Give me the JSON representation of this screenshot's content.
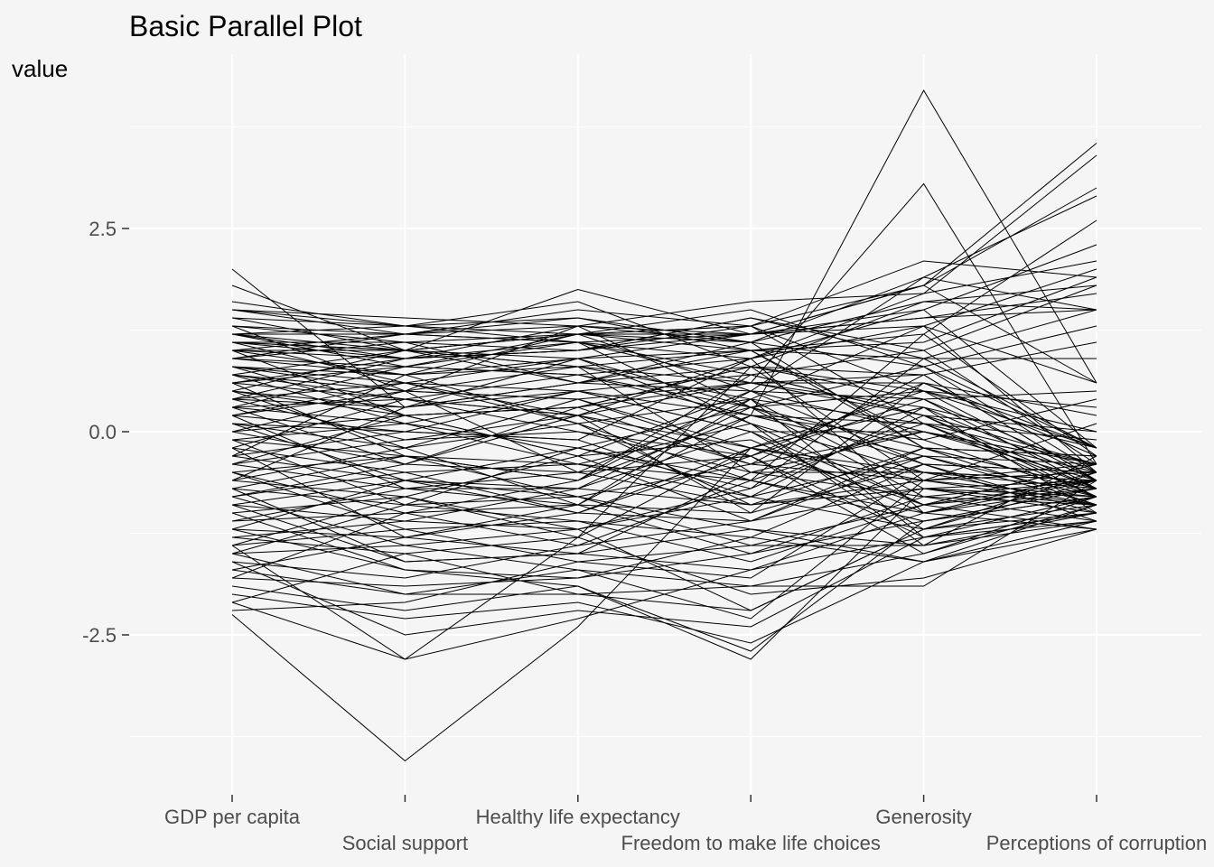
{
  "chart_data": {
    "type": "line",
    "title": "Basic Parallel Plot",
    "xlabel": "",
    "ylabel": "value",
    "categories": [
      "GDP per capita",
      "Social support",
      "Healthy life expectancy",
      "Freedom to make life choices",
      "Generosity",
      "Perceptions of corruption"
    ],
    "y_ticks": [
      -2.5,
      0.0,
      2.5
    ],
    "y_tick_labels": [
      "-2.5",
      "0.0",
      "2.5"
    ],
    "ylim": [
      -4.6,
      4.7
    ],
    "grid": true,
    "line_color": "#000000",
    "background_color": "#f5f5f5",
    "grid_color": "#ffffff",
    "series": [
      {
        "values": [
          -2.25,
          -4.05,
          -2.4,
          -0.2,
          0.3,
          -0.6
        ]
      },
      {
        "values": [
          2.0,
          0.3,
          0.5,
          0.2,
          4.2,
          0.6
        ]
      },
      {
        "values": [
          0.5,
          0.2,
          0.3,
          0.6,
          3.05,
          -0.4
        ]
      },
      {
        "values": [
          1.8,
          1.0,
          1.75,
          1.2,
          1.8,
          3.55
        ]
      },
      {
        "values": [
          1.5,
          1.4,
          1.3,
          1.6,
          1.7,
          3.4
        ]
      },
      {
        "values": [
          1.2,
          1.2,
          1.5,
          1.3,
          1.8,
          3.0
        ]
      },
      {
        "values": [
          1.6,
          1.3,
          1.4,
          1.1,
          1.9,
          2.9
        ]
      },
      {
        "values": [
          1.3,
          1.1,
          1.2,
          1.0,
          1.2,
          2.6
        ]
      },
      {
        "values": [
          1.1,
          0.9,
          1.3,
          1.2,
          1.5,
          2.3
        ]
      },
      {
        "values": [
          1.0,
          1.2,
          1.1,
          0.9,
          1.3,
          2.0
        ]
      },
      {
        "values": [
          1.4,
          1.0,
          1.2,
          1.3,
          2.1,
          1.9
        ]
      },
      {
        "values": [
          0.9,
          1.1,
          1.0,
          1.4,
          1.0,
          1.8
        ]
      },
      {
        "values": [
          1.2,
          1.3,
          1.6,
          0.8,
          1.6,
          1.5
        ]
      },
      {
        "values": [
          0.8,
          0.7,
          0.9,
          1.0,
          0.9,
          1.5
        ]
      },
      {
        "values": [
          1.5,
          1.2,
          1.1,
          1.2,
          1.4,
          1.7
        ]
      },
      {
        "values": [
          1.1,
          1.0,
          1.2,
          1.1,
          0.8,
          1.3
        ]
      },
      {
        "values": [
          1.3,
          1.2,
          1.4,
          1.0,
          1.1,
          1.9
        ]
      },
      {
        "values": [
          0.6,
          0.8,
          0.7,
          0.9,
          1.7,
          2.1
        ]
      },
      {
        "values": [
          1.0,
          0.9,
          1.1,
          0.6,
          0.7,
          1.1
        ]
      },
      {
        "values": [
          0.7,
          0.5,
          0.8,
          0.4,
          1.3,
          0.6
        ]
      },
      {
        "values": [
          1.2,
          0.9,
          1.0,
          1.3,
          0.5,
          0.3
        ]
      },
      {
        "values": [
          0.4,
          0.6,
          0.5,
          0.7,
          0.2,
          0.0
        ]
      },
      {
        "values": [
          0.9,
          0.7,
          1.2,
          0.5,
          0.4,
          0.5
        ]
      },
      {
        "values": [
          0.3,
          0.4,
          0.2,
          0.6,
          0.6,
          0.2
        ]
      },
      {
        "values": [
          1.1,
          1.0,
          0.9,
          0.3,
          -0.4,
          -0.5
        ]
      },
      {
        "values": [
          0.5,
          0.3,
          0.6,
          1.1,
          -0.2,
          -0.3
        ]
      },
      {
        "values": [
          0.2,
          0.5,
          0.4,
          -0.2,
          0.5,
          -0.6
        ]
      },
      {
        "values": [
          0.8,
          0.2,
          0.3,
          0.8,
          -0.6,
          -0.4
        ]
      },
      {
        "values": [
          0.1,
          -0.2,
          0.1,
          0.4,
          0.1,
          -0.7
        ]
      },
      {
        "values": [
          0.6,
          0.4,
          0.7,
          0.2,
          -0.3,
          -0.8
        ]
      },
      {
        "values": [
          -0.1,
          0.1,
          -0.2,
          0.3,
          0.8,
          -0.5
        ]
      },
      {
        "values": [
          0.4,
          -0.1,
          0.0,
          -0.5,
          -0.8,
          -0.9
        ]
      },
      {
        "values": [
          0.0,
          0.2,
          -0.3,
          0.5,
          0.0,
          -0.4
        ]
      },
      {
        "values": [
          0.3,
          -0.4,
          0.2,
          0.9,
          -1.0,
          -0.6
        ]
      },
      {
        "values": [
          -0.3,
          0.0,
          -0.1,
          -0.8,
          0.3,
          -0.2
        ]
      },
      {
        "values": [
          0.7,
          0.1,
          0.5,
          0.0,
          -1.2,
          -1.0
        ]
      },
      {
        "values": [
          -0.2,
          -0.5,
          -0.4,
          0.1,
          -0.5,
          -0.7
        ]
      },
      {
        "values": [
          0.2,
          0.6,
          0.1,
          -0.6,
          1.2,
          -0.3
        ]
      },
      {
        "values": [
          -0.5,
          -0.3,
          -0.6,
          0.2,
          -0.1,
          -0.8
        ]
      },
      {
        "values": [
          -0.4,
          -0.7,
          -0.5,
          -0.3,
          0.4,
          -0.5
        ]
      },
      {
        "values": [
          0.1,
          -0.6,
          -0.7,
          -0.9,
          -0.7,
          -0.9
        ]
      },
      {
        "values": [
          -0.6,
          -0.2,
          -0.9,
          0.4,
          -1.3,
          -1.1
        ]
      },
      {
        "values": [
          -0.7,
          -0.9,
          -0.8,
          -0.4,
          0.7,
          -0.6
        ]
      },
      {
        "values": [
          -0.8,
          -0.5,
          -1.0,
          -1.1,
          -0.3,
          -0.4
        ]
      },
      {
        "values": [
          -0.9,
          -1.1,
          -0.7,
          0.0,
          -0.9,
          -1.2
        ]
      },
      {
        "values": [
          -1.0,
          -0.8,
          -1.2,
          -0.7,
          0.2,
          -0.7
        ]
      },
      {
        "values": [
          -0.5,
          -1.2,
          -1.1,
          -1.3,
          -0.4,
          -0.5
        ]
      },
      {
        "values": [
          -1.1,
          -1.0,
          -1.4,
          -0.6,
          -1.1,
          -0.8
        ]
      },
      {
        "values": [
          -1.2,
          -1.3,
          -0.9,
          -1.0,
          0.6,
          -0.3
        ]
      },
      {
        "values": [
          -1.3,
          -1.5,
          -1.3,
          -0.2,
          -0.6,
          -0.9
        ]
      },
      {
        "values": [
          -1.4,
          -1.2,
          -1.6,
          -1.4,
          -1.4,
          -1.0
        ]
      },
      {
        "values": [
          -0.9,
          -1.6,
          -1.5,
          -0.5,
          0.0,
          -0.6
        ]
      },
      {
        "values": [
          -1.5,
          -1.4,
          -1.7,
          -1.9,
          -1.5,
          -0.8
        ]
      },
      {
        "values": [
          -1.6,
          -1.8,
          -1.4,
          -1.1,
          -0.2,
          -0.7
        ]
      },
      {
        "values": [
          -1.7,
          -2.0,
          -2.0,
          -2.2,
          -1.2,
          -0.9
        ]
      },
      {
        "values": [
          -1.8,
          -1.9,
          -1.8,
          -1.5,
          -0.8,
          -1.1
        ]
      },
      {
        "values": [
          -2.0,
          -2.3,
          -2.1,
          -2.6,
          -1.6,
          -1.2
        ]
      },
      {
        "values": [
          -2.1,
          -2.8,
          -2.3,
          -1.7,
          -1.0,
          -0.5
        ]
      },
      {
        "values": [
          -1.9,
          -2.2,
          -1.9,
          -2.8,
          -0.7,
          -1.0
        ]
      },
      {
        "values": [
          -1.4,
          -2.8,
          -1.3,
          -2.0,
          -1.8,
          -1.2
        ]
      },
      {
        "values": [
          -2.2,
          -2.1,
          -1.6,
          -1.8,
          -0.5,
          -0.6
        ]
      },
      {
        "values": [
          -1.6,
          -2.5,
          -2.2,
          -2.4,
          -1.3,
          -1.0
        ]
      },
      {
        "values": [
          -1.0,
          -1.7,
          -1.9,
          -2.7,
          -1.1,
          -0.8
        ]
      },
      {
        "values": [
          -1.5,
          -0.9,
          -1.1,
          -1.6,
          -0.9,
          -0.4
        ]
      },
      {
        "values": [
          -1.2,
          -0.6,
          -0.8,
          -1.2,
          -1.4,
          -1.1
        ]
      },
      {
        "values": [
          -0.8,
          -0.4,
          -0.5,
          -0.9,
          -0.2,
          -0.3
        ]
      },
      {
        "values": [
          -0.6,
          -0.8,
          -0.3,
          -0.1,
          -1.0,
          -0.7
        ]
      },
      {
        "values": [
          -0.3,
          -0.6,
          -0.2,
          -0.7,
          0.9,
          -0.2
        ]
      },
      {
        "values": [
          -0.1,
          -0.3,
          -0.6,
          0.7,
          1.0,
          -0.4
        ]
      },
      {
        "values": [
          0.0,
          -0.4,
          0.3,
          -0.4,
          -0.6,
          0.1
        ]
      },
      {
        "values": [
          0.5,
          -0.2,
          0.4,
          0.6,
          0.3,
          -1.0
        ]
      },
      {
        "values": [
          0.2,
          0.0,
          -0.1,
          0.9,
          1.5,
          -0.2
        ]
      },
      {
        "values": [
          0.8,
          0.6,
          0.9,
          1.2,
          1.3,
          -0.5
        ]
      },
      {
        "values": [
          0.9,
          0.8,
          1.1,
          0.7,
          0.2,
          -0.8
        ]
      },
      {
        "values": [
          1.0,
          0.7,
          0.8,
          1.0,
          -0.1,
          0.4
        ]
      },
      {
        "values": [
          1.1,
          1.1,
          0.6,
          0.5,
          1.9,
          1.5
        ]
      },
      {
        "values": [
          0.6,
          0.9,
          1.0,
          1.4,
          0.9,
          0.9
        ]
      },
      {
        "values": [
          0.4,
          0.3,
          0.9,
          0.1,
          -0.9,
          -0.6
        ]
      },
      {
        "values": [
          -0.2,
          0.4,
          0.0,
          -0.3,
          -1.5,
          -0.9
        ]
      },
      {
        "values": [
          0.3,
          0.1,
          -0.4,
          -0.8,
          -1.2,
          -0.6
        ]
      },
      {
        "values": [
          -0.4,
          -0.1,
          0.2,
          -1.0,
          -0.4,
          -1.1
        ]
      },
      {
        "values": [
          -0.7,
          -0.3,
          -0.4,
          -0.6,
          0.1,
          -0.4
        ]
      },
      {
        "values": [
          -1.1,
          -0.7,
          -0.7,
          0.3,
          -0.8,
          -0.6
        ]
      },
      {
        "values": [
          1.3,
          0.5,
          1.3,
          0.3,
          0.5,
          0.0
        ]
      },
      {
        "values": [
          1.4,
          1.3,
          1.2,
          1.5,
          0.8,
          -0.2
        ]
      },
      {
        "values": [
          0.7,
          1.0,
          0.6,
          0.8,
          0.4,
          -0.7
        ]
      },
      {
        "values": [
          0.1,
          0.0,
          0.5,
          0.0,
          0.0,
          -0.5
        ]
      },
      {
        "values": [
          -0.9,
          -0.6,
          -1.0,
          -0.3,
          -1.3,
          -0.8
        ]
      },
      {
        "values": [
          -1.3,
          -1.1,
          -1.2,
          -0.8,
          -0.3,
          -0.9
        ]
      },
      {
        "values": [
          -2.1,
          -1.5,
          -2.0,
          -1.9,
          -1.9,
          -0.6
        ]
      },
      {
        "values": [
          -1.7,
          -1.3,
          -1.5,
          -1.2,
          -1.6,
          -1.1
        ]
      },
      {
        "values": [
          -0.5,
          -1.0,
          -0.9,
          -1.5,
          -1.1,
          -0.7
        ]
      },
      {
        "values": [
          1.2,
          1.0,
          0.8,
          -0.5,
          -0.5,
          -0.9
        ]
      },
      {
        "values": [
          0.8,
          0.5,
          0.4,
          -0.3,
          0.6,
          -0.2
        ]
      },
      {
        "values": [
          -0.3,
          0.7,
          0.1,
          -0.9,
          -0.6,
          -0.5
        ]
      },
      {
        "values": [
          0.2,
          -0.7,
          -0.9,
          0.2,
          0.1,
          -0.8
        ]
      },
      {
        "values": [
          1.5,
          1.3,
          1.1,
          0.1,
          -1.4,
          -0.3
        ]
      },
      {
        "values": [
          -1.8,
          -1.0,
          -0.6,
          0.5,
          -0.4,
          -1.0
        ]
      },
      {
        "values": [
          -1.4,
          -0.8,
          -1.3,
          0.8,
          0.7,
          -0.6
        ]
      },
      {
        "values": [
          0.6,
          -0.3,
          -0.8,
          -1.4,
          -0.9,
          -0.4
        ]
      },
      {
        "values": [
          1.0,
          0.2,
          -0.3,
          -1.1,
          -0.7,
          -0.6
        ]
      },
      {
        "values": [
          -0.6,
          0.3,
          0.6,
          1.0,
          -0.2,
          -0.9
        ]
      },
      {
        "values": [
          1.2,
          0.8,
          1.2,
          1.3,
          0.1,
          -0.1
        ]
      },
      {
        "values": [
          -0.8,
          -1.4,
          -1.2,
          -2.2,
          -1.2,
          -0.5
        ]
      },
      {
        "values": [
          -1.5,
          -2.0,
          -1.7,
          -2.3,
          -0.6,
          -0.8
        ]
      },
      {
        "values": [
          0.9,
          1.2,
          1.3,
          1.1,
          1.6,
          1.8
        ]
      },
      {
        "values": [
          1.0,
          1.0,
          1.2,
          1.2,
          1.4,
          1.5
        ]
      },
      {
        "values": [
          0.3,
          0.8,
          0.7,
          0.3,
          -0.2,
          -0.7
        ]
      },
      {
        "values": [
          -0.1,
          -0.9,
          -0.2,
          -0.6,
          -1.0,
          -1.2
        ]
      },
      {
        "values": [
          -1.2,
          -1.7,
          -1.8,
          -1.3,
          -1.6,
          -0.9
        ]
      },
      {
        "values": [
          1.1,
          0.6,
          0.2,
          -0.2,
          -0.5,
          -0.6
        ]
      },
      {
        "values": [
          0.5,
          1.0,
          0.8,
          0.6,
          0.2,
          -0.4
        ]
      },
      {
        "values": [
          -0.4,
          0.2,
          0.3,
          0.8,
          0.5,
          -0.2
        ]
      },
      {
        "values": [
          0.0,
          0.5,
          -0.5,
          0.4,
          -0.7,
          -0.8
        ]
      },
      {
        "values": [
          -0.2,
          -1.3,
          -1.0,
          -0.2,
          -0.9,
          -0.7
        ]
      },
      {
        "values": [
          -0.7,
          -1.6,
          -1.5,
          -1.7,
          -1.3,
          -1.0
        ]
      },
      {
        "values": [
          0.4,
          0.9,
          1.0,
          1.2,
          1.8,
          0.6
        ]
      },
      {
        "values": [
          0.7,
          0.4,
          0.2,
          -0.4,
          0.0,
          -0.4
        ]
      }
    ]
  }
}
